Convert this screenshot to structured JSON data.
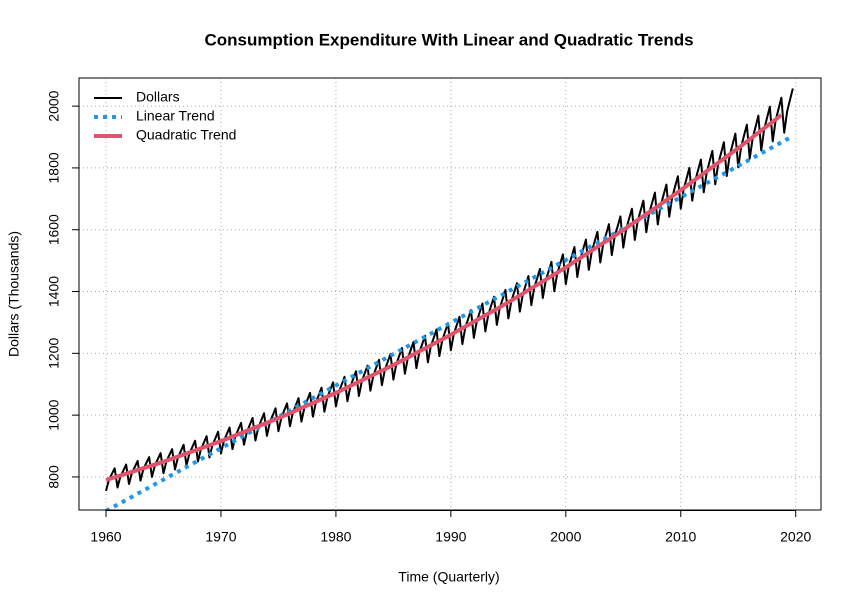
{
  "chart_data": {
    "type": "line",
    "title": "Consumption Expenditure With Linear and Quadratic Trends",
    "x_label": "Time (Quarterly)",
    "y_label": "Dollars (Thousands)",
    "xlim": [
      1957.65,
      2022.2
    ],
    "ylim": [
      693,
      2091
    ],
    "xticks": [
      1960,
      1970,
      1980,
      1990,
      2000,
      2010,
      2020
    ],
    "yticks": [
      800,
      1000,
      1200,
      1400,
      1600,
      1800,
      2000
    ],
    "grid": true,
    "legend": "topleft",
    "series": [
      {
        "name": "Dollars",
        "color": "#000000",
        "style": "solid",
        "width": 2,
        "x": [
          1960,
          1960.25,
          1960.5,
          1960.75,
          1961,
          1961.25,
          1961.5,
          1961.75,
          1962,
          1962.25,
          1962.5,
          1962.75,
          1963,
          1963.25,
          1963.5,
          1963.75,
          1964,
          1964.25,
          1964.5,
          1964.75,
          1965,
          1965.25,
          1965.5,
          1965.75,
          1966,
          1966.25,
          1966.5,
          1966.75,
          1967,
          1967.25,
          1967.5,
          1967.75,
          1968,
          1968.25,
          1968.5,
          1968.75,
          1969,
          1969.25,
          1969.5,
          1969.75,
          1970,
          1970.25,
          1970.5,
          1970.75,
          1971,
          1971.25,
          1971.5,
          1971.75,
          1972,
          1972.25,
          1972.5,
          1972.75,
          1973,
          1973.25,
          1973.5,
          1973.75,
          1974,
          1974.25,
          1974.5,
          1974.75,
          1975,
          1975.25,
          1975.5,
          1975.75,
          1976,
          1976.25,
          1976.5,
          1976.75,
          1977,
          1977.25,
          1977.5,
          1977.75,
          1978,
          1978.25,
          1978.5,
          1978.75,
          1979,
          1979.25,
          1979.5,
          1979.75,
          1980,
          1980.25,
          1980.5,
          1980.75,
          1981,
          1981.25,
          1981.5,
          1981.75,
          1982,
          1982.25,
          1982.5,
          1982.75,
          1983,
          1983.25,
          1983.5,
          1983.75,
          1984,
          1984.25,
          1984.5,
          1984.75,
          1985,
          1985.25,
          1985.5,
          1985.75,
          1986,
          1986.25,
          1986.5,
          1986.75,
          1987,
          1987.25,
          1987.5,
          1987.75,
          1988,
          1988.25,
          1988.5,
          1988.75,
          1989,
          1989.25,
          1989.5,
          1989.75,
          1990,
          1990.25,
          1990.5,
          1990.75,
          1991,
          1991.25,
          1991.5,
          1991.75,
          1992,
          1992.25,
          1992.5,
          1992.75,
          1993,
          1993.25,
          1993.5,
          1993.75,
          1994,
          1994.25,
          1994.5,
          1994.75,
          1995,
          1995.25,
          1995.5,
          1995.75,
          1996,
          1996.25,
          1996.5,
          1996.75,
          1997,
          1997.25,
          1997.5,
          1997.75,
          1998,
          1998.25,
          1998.5,
          1998.75,
          1999,
          1999.25,
          1999.5,
          1999.75,
          2000,
          2000.25,
          2000.5,
          2000.75,
          2001,
          2001.25,
          2001.5,
          2001.75,
          2002,
          2002.25,
          2002.5,
          2002.75,
          2003,
          2003.25,
          2003.5,
          2003.75,
          2004,
          2004.25,
          2004.5,
          2004.75,
          2005,
          2005.25,
          2005.5,
          2005.75,
          2006,
          2006.25,
          2006.5,
          2006.75,
          2007,
          2007.25,
          2007.5,
          2007.75,
          2008,
          2008.25,
          2008.5,
          2008.75,
          2009,
          2009.25,
          2009.5,
          2009.75,
          2010,
          2010.25,
          2010.5,
          2010.75,
          2011,
          2011.25,
          2011.5,
          2011.75,
          2012,
          2012.25,
          2012.5,
          2012.75,
          2013,
          2013.25,
          2013.5,
          2013.75,
          2014,
          2014.25,
          2014.5,
          2014.75,
          2015,
          2015.25,
          2015.5,
          2015.75,
          2016,
          2016.25,
          2016.5,
          2016.75,
          2017,
          2017.25,
          2017.5,
          2017.75,
          2018,
          2018.25,
          2018.5,
          2018.75,
          2019,
          2019.25,
          2019.5,
          2019.75
        ],
        "values": [
          755,
          790,
          809,
          828,
          766,
          801,
          820,
          840,
          777,
          813,
          832,
          852,
          788,
          825,
          845,
          864,
          800,
          837,
          857,
          877,
          812,
          850,
          870,
          890,
          824,
          862,
          883,
          904,
          837,
          875,
          896,
          917,
          850,
          889,
          910,
          932,
          863,
          902,
          924,
          946,
          876,
          916,
          938,
          960,
          890,
          931,
          953,
          975,
          904,
          945,
          968,
          991,
          918,
          960,
          983,
          1006,
          933,
          976,
          999,
          1022,
          948,
          991,
          1015,
          1038,
          964,
          1007,
          1031,
          1055,
          979,
          1023,
          1048,
          1072,
          995,
          1040,
          1064,
          1089,
          1011,
          1057,
          1081,
          1106,
          1028,
          1074,
          1099,
          1124,
          1045,
          1091,
          1117,
          1142,
          1062,
          1109,
          1135,
          1160,
          1079,
          1127,
          1153,
          1179,
          1097,
          1145,
          1172,
          1198,
          1115,
          1164,
          1191,
          1217,
          1134,
          1183,
          1210,
          1237,
          1152,
          1202,
          1229,
          1257,
          1171,
          1222,
          1249,
          1277,
          1191,
          1242,
          1270,
          1298,
          1210,
          1262,
          1290,
          1318,
          1230,
          1282,
          1311,
          1340,
          1250,
          1303,
          1332,
          1361,
          1271,
          1324,
          1354,
          1383,
          1292,
          1346,
          1375,
          1405,
          1313,
          1367,
          1397,
          1427,
          1335,
          1389,
          1420,
          1450,
          1356,
          1412,
          1442,
          1473,
          1379,
          1435,
          1465,
          1496,
          1401,
          1458,
          1489,
          1520,
          1424,
          1481,
          1512,
          1544,
          1447,
          1504,
          1536,
          1568,
          1470,
          1528,
          1561,
          1593,
          1494,
          1553,
          1585,
          1618,
          1518,
          1577,
          1610,
          1643,
          1542,
          1602,
          1635,
          1668,
          1567,
          1627,
          1661,
          1694,
          1592,
          1653,
          1686,
          1720,
          1617,
          1678,
          1712,
          1746,
          1642,
          1704,
          1739,
          1773,
          1668,
          1731,
          1765,
          1800,
          1694,
          1757,
          1792,
          1827,
          1721,
          1784,
          1820,
          1855,
          1747,
          1812,
          1847,
          1883,
          1774,
          1839,
          1875,
          1911,
          1802,
          1867,
          1904,
          1940,
          1830,
          1895,
          1932,
          1969,
          1857,
          1924,
          1961,
          1998,
          1886,
          1953,
          1990,
          2027,
          1914,
          1982,
          2020,
          2057
        ]
      },
      {
        "name": "Linear Trend",
        "color": "#2297e6",
        "style": "dotted",
        "width": 4,
        "x": [
          1960,
          2019.75
        ],
        "values": [
          690,
          1903
        ]
      },
      {
        "name": "Quadratic Trend",
        "color": "#df536b",
        "style": "solid",
        "width": 4,
        "x": [
          1960,
          1965,
          1970,
          1975,
          1980,
          1985,
          1990,
          1995,
          2000,
          2005,
          2010,
          2015,
          2018.75
        ],
        "values": [
          790,
          849,
          916,
          990,
          1072,
          1162,
          1260,
          1365,
          1478,
          1599,
          1728,
          1864,
          1971
        ]
      }
    ]
  }
}
